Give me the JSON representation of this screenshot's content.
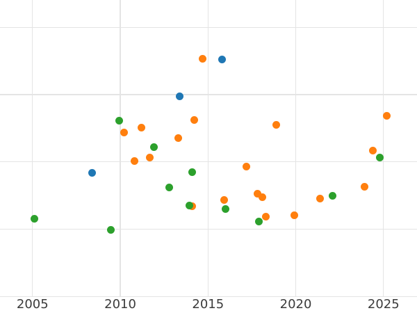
{
  "chart_data": {
    "type": "scatter",
    "title": "",
    "xlabel": "",
    "ylabel": "",
    "grid": true,
    "legend": false,
    "x_ticks": [
      {
        "value": 2005,
        "label": "2005"
      },
      {
        "value": 2010,
        "label": "2010"
      },
      {
        "value": 2015,
        "label": "2015"
      },
      {
        "value": 2020,
        "label": "2020"
      },
      {
        "value": 2025,
        "label": "2025"
      }
    ],
    "y_gridline_units": [
      0,
      1,
      2,
      3,
      4
    ],
    "y_tick_labels": [],
    "xlim": [
      2003.15,
      2026.9
    ],
    "ylim_units": [
      0,
      4.4
    ],
    "colors": {
      "blue": "#1f77b4",
      "orange": "#ff7f0e",
      "green": "#2ca02c",
      "gridline": "#e4e4e4",
      "tick_label": "#3b3b3b"
    },
    "series": [
      {
        "name": "blue",
        "color": "#1f77b4",
        "points": [
          {
            "x": 2008.4,
            "y": 1.84
          },
          {
            "x": 2013.4,
            "y": 2.97
          },
          {
            "x": 2015.8,
            "y": 3.52
          }
        ]
      },
      {
        "name": "orange",
        "color": "#ff7f0e",
        "points": [
          {
            "x": 2014.7,
            "y": 3.53
          },
          {
            "x": 2010.2,
            "y": 2.44
          },
          {
            "x": 2011.2,
            "y": 2.51
          },
          {
            "x": 2014.2,
            "y": 2.62
          },
          {
            "x": 2013.3,
            "y": 2.35
          },
          {
            "x": 2011.7,
            "y": 2.06
          },
          {
            "x": 2010.8,
            "y": 2.01
          },
          {
            "x": 2018.9,
            "y": 2.55
          },
          {
            "x": 2025.2,
            "y": 2.69
          },
          {
            "x": 2024.4,
            "y": 2.17
          },
          {
            "x": 2023.9,
            "y": 1.63
          },
          {
            "x": 2014.1,
            "y": 1.34
          },
          {
            "x": 2017.2,
            "y": 1.93
          },
          {
            "x": 2015.9,
            "y": 1.43
          },
          {
            "x": 2017.8,
            "y": 1.53
          },
          {
            "x": 2018.1,
            "y": 1.48
          },
          {
            "x": 2018.3,
            "y": 1.19
          },
          {
            "x": 2019.9,
            "y": 1.21
          },
          {
            "x": 2021.4,
            "y": 1.46
          }
        ]
      },
      {
        "name": "green",
        "color": "#2ca02c",
        "points": [
          {
            "x": 2009.95,
            "y": 2.61
          },
          {
            "x": 2011.9,
            "y": 2.22
          },
          {
            "x": 2024.8,
            "y": 2.06
          },
          {
            "x": 2014.1,
            "y": 1.85
          },
          {
            "x": 2012.8,
            "y": 1.62
          },
          {
            "x": 2013.95,
            "y": 1.35
          },
          {
            "x": 2005.1,
            "y": 1.16
          },
          {
            "x": 2009.45,
            "y": 0.99
          },
          {
            "x": 2016.0,
            "y": 1.3
          },
          {
            "x": 2017.9,
            "y": 1.11
          },
          {
            "x": 2022.1,
            "y": 1.5
          }
        ]
      }
    ]
  }
}
